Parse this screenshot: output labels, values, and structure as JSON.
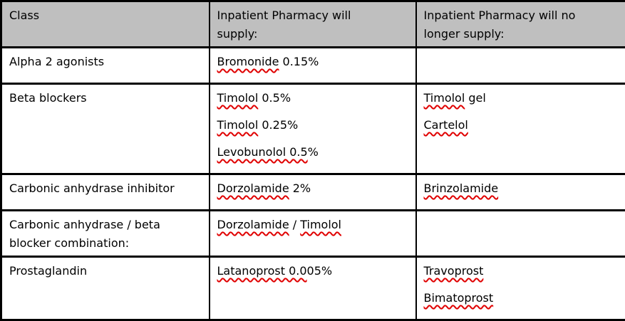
{
  "colors": {
    "header_bg": "#bfbfbf",
    "border": "#000000",
    "squiggle": "#e00000",
    "text": "#000000"
  },
  "table": {
    "header": {
      "cells": [
        {
          "lines": [
            "Class"
          ]
        },
        {
          "lines": [
            "Inpatient Pharmacy will",
            "supply:"
          ]
        },
        {
          "lines": [
            "Inpatient Pharmacy will no",
            "longer supply:"
          ]
        }
      ]
    },
    "rows": [
      {
        "class_lines": [
          "Alpha 2 agonists"
        ],
        "supply": [
          [
            {
              "t": "Bromonide",
              "sq": true
            },
            {
              "t": " 0.15%",
              "sq": false
            }
          ]
        ],
        "no_longer": []
      },
      {
        "class_lines": [
          "Beta blockers"
        ],
        "supply": [
          [
            {
              "t": "Timolol",
              "sq": true
            },
            {
              "t": " 0.5%",
              "sq": false
            }
          ],
          [
            {
              "t": "Timolol",
              "sq": true
            },
            {
              "t": " 0.25%",
              "sq": false
            }
          ],
          [
            {
              "t": "Levobunolol 0.5",
              "sq": true
            },
            {
              "t": "%",
              "sq": false
            }
          ]
        ],
        "no_longer": [
          [
            {
              "t": "Timolol",
              "sq": true
            },
            {
              "t": " gel",
              "sq": false
            }
          ],
          [
            {
              "t": "Cartelol",
              "sq": true
            }
          ]
        ]
      },
      {
        "class_lines": [
          "Carbonic anhydrase inhibitor"
        ],
        "supply": [
          [
            {
              "t": "Dorzolamide",
              "sq": true
            },
            {
              "t": " 2%",
              "sq": false
            }
          ]
        ],
        "no_longer": [
          [
            {
              "t": "Brinzolamide",
              "sq": true
            }
          ]
        ]
      },
      {
        "class_lines": [
          "Carbonic anhydrase / beta",
          "blocker combination:"
        ],
        "supply": [
          [
            {
              "t": "Dorzolamide",
              "sq": true
            },
            {
              "t": " / ",
              "sq": false
            },
            {
              "t": "Timolol",
              "sq": true
            }
          ]
        ],
        "no_longer": []
      },
      {
        "class_lines": [
          "Prostaglandin"
        ],
        "supply": [
          [
            {
              "t": "Latanoprost 0.0",
              "sq": true
            },
            {
              "t": "05%",
              "sq": false
            }
          ]
        ],
        "no_longer": [
          [
            {
              "t": "Travoprost",
              "sq": true
            }
          ],
          [
            {
              "t": "Bimatoprost",
              "sq": true
            }
          ]
        ]
      }
    ]
  }
}
